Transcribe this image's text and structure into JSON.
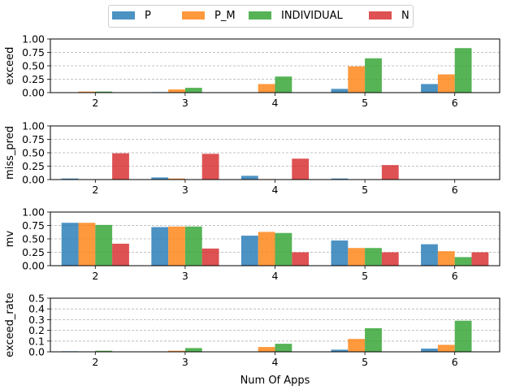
{
  "chart_data": {
    "type": "bar",
    "categories": [
      "2",
      "3",
      "4",
      "5",
      "6"
    ],
    "xlabel": "Num Of Apps",
    "legend": {
      "placement": "top-center",
      "entries": [
        {
          "name": "P",
          "color": "#1f77b4"
        },
        {
          "name": "P_M",
          "color": "#ff7f0e"
        },
        {
          "name": "INDIVIDUAL",
          "color": "#2ca02c"
        },
        {
          "name": "N",
          "color": "#d62728"
        }
      ]
    },
    "bar_alpha": 0.8,
    "grid": "y-dashed",
    "panels": [
      {
        "ylabel": "exceed",
        "ylim": [
          0,
          1.0
        ],
        "yticks": [
          "0.00",
          "0.25",
          "0.50",
          "0.75",
          "1.00"
        ],
        "series": [
          {
            "name": "P",
            "values": [
              0.0,
              0.01,
              0.0,
              0.07,
              0.16
            ]
          },
          {
            "name": "P_M",
            "values": [
              0.02,
              0.06,
              0.16,
              0.49,
              0.34
            ]
          },
          {
            "name": "INDIVIDUAL",
            "values": [
              0.02,
              0.09,
              0.3,
              0.64,
              0.83
            ]
          },
          {
            "name": "N",
            "values": [
              0.0,
              0.0,
              0.0,
              0.0,
              0.0
            ]
          }
        ]
      },
      {
        "ylabel": "miss_pred",
        "ylim": [
          0,
          1.0
        ],
        "yticks": [
          "0.00",
          "0.25",
          "0.50",
          "0.75",
          "1.00"
        ],
        "series": [
          {
            "name": "P",
            "values": [
              0.02,
              0.04,
              0.07,
              0.02,
              0.0
            ]
          },
          {
            "name": "P_M",
            "values": [
              0.0,
              0.02,
              0.01,
              0.0,
              0.0
            ]
          },
          {
            "name": "INDIVIDUAL",
            "values": [
              0.0,
              0.0,
              0.0,
              0.0,
              0.0
            ]
          },
          {
            "name": "N",
            "values": [
              0.49,
              0.48,
              0.39,
              0.27,
              0.0
            ]
          }
        ]
      },
      {
        "ylabel": "mv",
        "ylim": [
          0,
          1.0
        ],
        "yticks": [
          "0.00",
          "0.25",
          "0.50",
          "0.75",
          "1.00"
        ],
        "series": [
          {
            "name": "P",
            "values": [
              0.8,
              0.72,
              0.56,
              0.47,
              0.4
            ]
          },
          {
            "name": "P_M",
            "values": [
              0.8,
              0.73,
              0.63,
              0.33,
              0.27
            ]
          },
          {
            "name": "INDIVIDUAL",
            "values": [
              0.76,
              0.73,
              0.61,
              0.33,
              0.16
            ]
          },
          {
            "name": "N",
            "values": [
              0.41,
              0.32,
              0.25,
              0.25,
              0.25
            ]
          }
        ]
      },
      {
        "ylabel": "exceed_rate",
        "ylim": [
          0,
          0.5
        ],
        "yticks": [
          "0.0",
          "0.1",
          "0.2",
          "0.3",
          "0.4",
          "0.5"
        ],
        "series": [
          {
            "name": "P",
            "values": [
              0.005,
              0.004,
              0.003,
              0.02,
              0.03
            ]
          },
          {
            "name": "P_M",
            "values": [
              0.004,
              0.01,
              0.045,
              0.12,
              0.065
            ]
          },
          {
            "name": "INDIVIDUAL",
            "values": [
              0.01,
              0.035,
              0.075,
              0.22,
              0.29
            ]
          },
          {
            "name": "N",
            "values": [
              0.0,
              0.0,
              0.0,
              0.0,
              0.0
            ]
          }
        ]
      }
    ]
  }
}
